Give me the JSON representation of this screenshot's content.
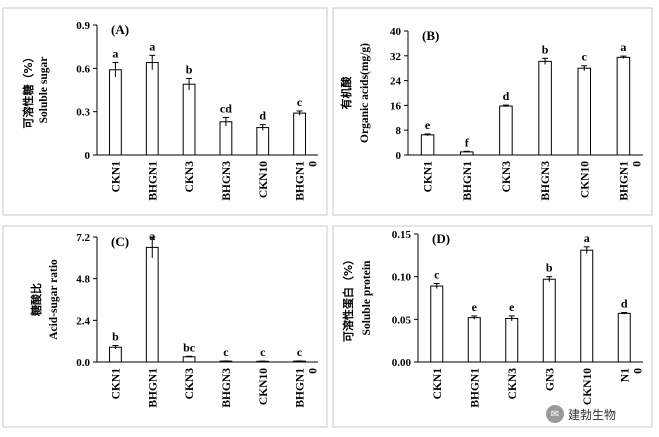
{
  "chart_data": [
    {
      "type": "bar",
      "panel_label": "(A)",
      "ylabel_cn": "可溶性糖（%）",
      "ylabel_en": "Soluble sugar",
      "ylim": [
        0,
        0.9
      ],
      "yticks": [
        "0",
        "0.3",
        "0.6",
        "0.9"
      ],
      "categories": [
        "CKN1",
        "BHGN1",
        "CKN3",
        "BHGN3",
        "CKN10",
        "BHGN1\n0"
      ],
      "values": [
        0.59,
        0.64,
        0.49,
        0.23,
        0.19,
        0.29
      ],
      "errors": [
        0.05,
        0.05,
        0.04,
        0.03,
        0.02,
        0.015
      ],
      "letters": [
        "a",
        "a",
        "b",
        "cd",
        "d",
        "c"
      ]
    },
    {
      "type": "bar",
      "panel_label": "(B)",
      "ylabel_cn": "有机酸",
      "ylabel_en": "Organic  acids(mg/g)",
      "ylim": [
        0,
        40
      ],
      "yticks": [
        "0",
        "8",
        "16",
        "24",
        "32",
        "40"
      ],
      "categories": [
        "CKN1",
        "BHGN1",
        "CKN3",
        "BHGN3",
        "CKN10",
        "BHGN1\n0"
      ],
      "values": [
        6.5,
        1.0,
        15.8,
        30.2,
        28.0,
        31.5
      ],
      "errors": [
        0.3,
        0.2,
        0.3,
        1.0,
        0.8,
        0.4
      ],
      "letters": [
        "e",
        "f",
        "d",
        "b",
        "c",
        "a"
      ]
    },
    {
      "type": "bar",
      "panel_label": "(C)",
      "ylabel_cn": "糖酸比",
      "ylabel_en": "Acid-sugar ratio",
      "ylim": [
        0,
        7.2
      ],
      "yticks": [
        "0.0",
        "2.4",
        "4.8",
        "7.2"
      ],
      "categories": [
        "CKN1",
        "BHGN1",
        "CKN3",
        "BHGN3",
        "CKN10",
        "BHGN1\n0"
      ],
      "values": [
        0.85,
        6.6,
        0.3,
        0.05,
        0.04,
        0.05
      ],
      "errors": [
        0.1,
        0.6,
        0.03,
        0.01,
        0.01,
        0.01
      ],
      "letters": [
        "b",
        "a",
        "bc",
        "c",
        "c",
        "c"
      ]
    },
    {
      "type": "bar",
      "panel_label": "(D)",
      "ylabel_cn": "可溶性蛋白（%）",
      "ylabel_en": "Soluble protein",
      "ylim": [
        0,
        0.15
      ],
      "yticks": [
        "0.00",
        "0.05",
        "0.10",
        "0.15"
      ],
      "categories": [
        "CKN1",
        "BHGN1",
        "CKN3",
        "GN3",
        "CKN10",
        "N1\n0"
      ],
      "values": [
        0.089,
        0.052,
        0.051,
        0.097,
        0.131,
        0.057
      ],
      "errors": [
        0.003,
        0.002,
        0.003,
        0.003,
        0.004,
        0.001
      ],
      "letters": [
        "c",
        "e",
        "e",
        "b",
        "a",
        "d"
      ]
    }
  ],
  "watermark": {
    "icon": "wechat-icon",
    "text": "建勃生物"
  }
}
